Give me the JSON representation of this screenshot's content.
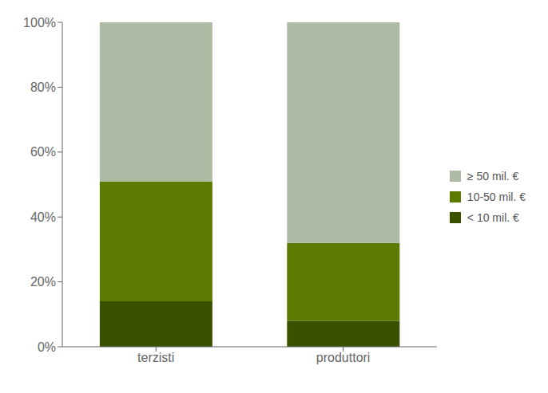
{
  "chart_data": {
    "type": "bar",
    "stacked": true,
    "categories": [
      "terzisti",
      "produttori"
    ],
    "series": [
      {
        "name": "< 10 mil. €",
        "color": "#3a5200",
        "values": [
          14,
          8
        ]
      },
      {
        "name": "10-50 mil. €",
        "color": "#5a7a00",
        "values": [
          37,
          24
        ]
      },
      {
        "name": "≥ 50 mil. €",
        "color": "#adbba4",
        "values": [
          49,
          68
        ]
      }
    ],
    "ylim": [
      0,
      100
    ],
    "yticks": [
      {
        "value": 0,
        "label": "0%"
      },
      {
        "value": 20,
        "label": "20%"
      },
      {
        "value": 40,
        "label": "40%"
      },
      {
        "value": 60,
        "label": "60%"
      },
      {
        "value": 80,
        "label": "80%"
      },
      {
        "value": 100,
        "label": "100%"
      }
    ],
    "grid": false,
    "legend": "right"
  }
}
